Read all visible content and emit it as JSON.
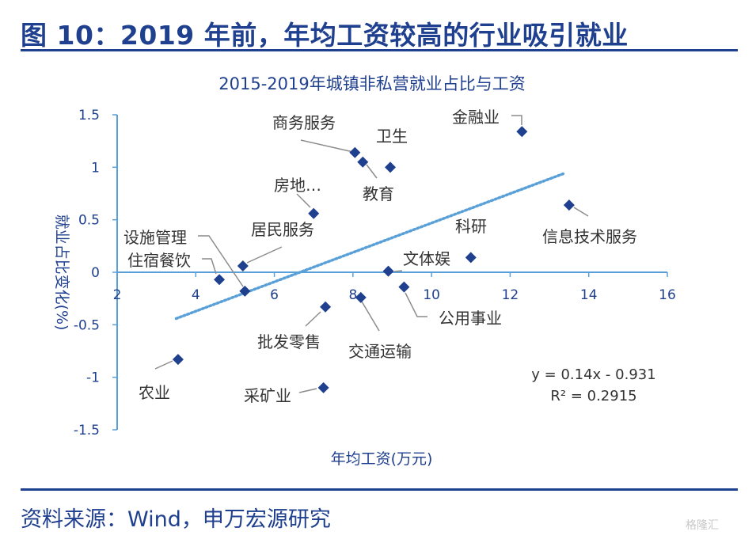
{
  "figure": {
    "title": "图 10：2019 年前，年均工资较高的行业吸引就业",
    "source": "资料来源：Wind，申万宏源研究",
    "watermark": "格隆汇"
  },
  "chart_data": {
    "type": "scatter",
    "title": "2015-2019年城镇非私营就业占比与工资",
    "xlabel": "年均工资(万元)",
    "ylabel": "就业占比变化(%)",
    "xlim": [
      2,
      16
    ],
    "ylim": [
      -1.5,
      1.5
    ],
    "xticks": [
      2,
      4,
      6,
      8,
      10,
      12,
      14,
      16
    ],
    "yticks": [
      1.5,
      1,
      0.5,
      0,
      -0.5,
      -1,
      -1.5
    ],
    "grid": false,
    "colors": {
      "point": "#1f3f8f",
      "trend": "#5aa0d8",
      "axis": "#5aa0d8"
    },
    "points": [
      {
        "label": "金融业",
        "x": 12.3,
        "y": 1.34
      },
      {
        "label": "商务服务",
        "x": 8.05,
        "y": 1.14
      },
      {
        "label": "卫生",
        "x": 8.95,
        "y": 1.0
      },
      {
        "label": "教育",
        "x": 8.25,
        "y": 1.05
      },
      {
        "label": "房地…",
        "x": 7.0,
        "y": 0.56
      },
      {
        "label": "信息技术服务",
        "x": 13.5,
        "y": 0.64
      },
      {
        "label": "居民服务",
        "x": 5.2,
        "y": 0.06
      },
      {
        "label": "设施管理",
        "x": 5.25,
        "y": -0.18
      },
      {
        "label": "住宿餐饮",
        "x": 4.6,
        "y": -0.07
      },
      {
        "label": "科研",
        "x": 11.0,
        "y": 0.14
      },
      {
        "label": "文体娱",
        "x": 8.9,
        "y": 0.01
      },
      {
        "label": "公用事业",
        "x": 9.3,
        "y": -0.14
      },
      {
        "label": "批发零售",
        "x": 7.3,
        "y": -0.33
      },
      {
        "label": "交通运输",
        "x": 8.2,
        "y": -0.24
      },
      {
        "label": "农业",
        "x": 3.55,
        "y": -0.83
      },
      {
        "label": "采矿业",
        "x": 7.25,
        "y": -1.1
      }
    ],
    "trendline": {
      "slope": 0.14,
      "intercept": -0.931,
      "x_range": [
        3.5,
        13.4
      ]
    },
    "equation": "y = 0.14x - 0.931",
    "r2": "R² = 0.2915"
  }
}
